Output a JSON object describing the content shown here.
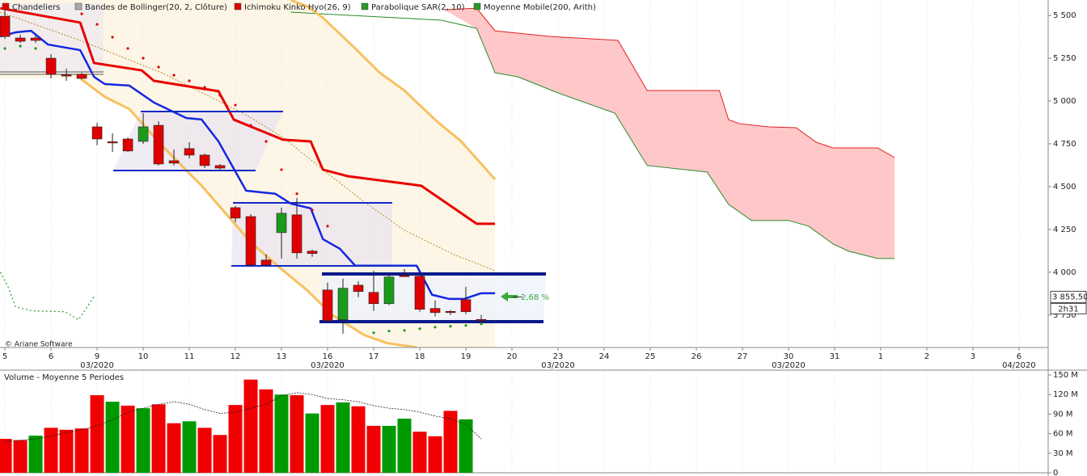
{
  "chart_data": [
    {
      "type": "candlestick",
      "legend": [
        {
          "label": "Chandeliers",
          "color": "#e00000"
        },
        {
          "label": "Bandes de Bollinger(20, 2, Clôture)",
          "color": "#aaaaaa"
        },
        {
          "label": "Ichimoku Kinko Hyo(26, 9)",
          "color": "#e00000"
        },
        {
          "label": "Parabolique SAR(2, 10)",
          "color": "#2a9a2a"
        },
        {
          "label": "Moyenne Mobile(200, Arith)",
          "color": "#2a9a2a"
        }
      ],
      "xlim": [
        -0.32,
        67.9
      ],
      "ylim": [
        3560,
        5590
      ],
      "xticks": [
        {
          "value": 0,
          "label": "5"
        },
        {
          "value": 3,
          "label": "6"
        },
        {
          "value": 6,
          "label": "9"
        },
        {
          "value": 9,
          "label": "10"
        },
        {
          "value": 12,
          "label": "11"
        },
        {
          "value": 15,
          "label": "12"
        },
        {
          "value": 18,
          "label": "13"
        },
        {
          "value": 21,
          "label": "16"
        },
        {
          "value": 24,
          "label": "17"
        },
        {
          "value": 27,
          "label": "18"
        },
        {
          "value": 30,
          "label": "19"
        },
        {
          "value": 33,
          "label": "20"
        },
        {
          "value": 36,
          "label": "23"
        },
        {
          "value": 39,
          "label": "24"
        },
        {
          "value": 42,
          "label": "25"
        },
        {
          "value": 45,
          "label": "26"
        },
        {
          "value": 48,
          "label": "27"
        },
        {
          "value": 51,
          "label": "30"
        },
        {
          "value": 54,
          "label": "31"
        },
        {
          "value": 57,
          "label": "1"
        },
        {
          "value": 60,
          "label": "2"
        },
        {
          "value": 63,
          "label": "3"
        },
        {
          "value": 66,
          "label": "6"
        }
      ],
      "month_labels": [
        {
          "value": 6,
          "label": "03/2020"
        },
        {
          "value": 21,
          "label": "03/2020"
        },
        {
          "value": 36,
          "label": "03/2020"
        },
        {
          "value": 51,
          "label": "03/2020"
        },
        {
          "value": 66,
          "label": "04/2020"
        }
      ],
      "yticks": [
        {
          "value": 5500,
          "label": "5 500"
        },
        {
          "value": 5250,
          "label": "5 250"
        },
        {
          "value": 5000,
          "label": "5 000"
        },
        {
          "value": 4750,
          "label": "4 750"
        },
        {
          "value": 4500,
          "label": "4 500"
        },
        {
          "value": 4250,
          "label": "4 250"
        },
        {
          "value": 4000,
          "label": "4 000"
        },
        {
          "value": 3750,
          "label": "3 750"
        }
      ],
      "up_color": "#1c9a1c",
      "down_color": "#e00000",
      "open": [
        5495,
        5368,
        5368,
        5250,
        5153,
        5156,
        4849,
        4762,
        4778,
        4764,
        4858,
        4651,
        4722,
        4684,
        4623,
        4377,
        4325,
        4071,
        4231,
        4335,
        4123,
        3896,
        3722,
        3924,
        3882,
        3816,
        3981,
        3976,
        3788,
        3771,
        3840,
        3724
      ],
      "high": [
        5533,
        5387,
        5382,
        5274,
        5189,
        5165,
        4873,
        4811,
        4788,
        4929,
        4882,
        4717,
        4759,
        4693,
        4632,
        4387,
        4340,
        4104,
        4377,
        4434,
        4132,
        3939,
        3962,
        3948,
        4009,
        3986,
        4019,
        3986,
        3835,
        3778,
        3915,
        3750
      ],
      "low": [
        5363,
        5340,
        5340,
        5132,
        5118,
        5127,
        4741,
        4703,
        4703,
        4750,
        4623,
        4623,
        4665,
        4608,
        4599,
        4292,
        4033,
        4033,
        4080,
        4080,
        4090,
        3703,
        3641,
        3854,
        3774,
        3807,
        3972,
        3769,
        3741,
        3750,
        3755,
        3712
      ],
      "close": [
        5377,
        5349,
        5354,
        5156,
        5151,
        5132,
        4778,
        4759,
        4708,
        4849,
        4632,
        4637,
        4684,
        4623,
        4608,
        4316,
        4042,
        4042,
        4344,
        4113,
        4109,
        3717,
        3906,
        3887,
        3816,
        3972,
        3976,
        3783,
        3764,
        3769,
        3769,
        3722
      ],
      "sar": [
        5307,
        5321,
        5307,
        null,
        null,
        5509,
        5448,
        5373,
        5307,
        5250,
        5198,
        5151,
        5118,
        5080,
        5033,
        4976,
        4858,
        4764,
        4599,
        4458,
        4363,
        4269,
        null,
        null,
        3646,
        3656,
        3660,
        3670,
        3679,
        3684,
        3689,
        3698
      ],
      "lines": [
        {
          "color": "#2a9a2a",
          "width": 1.2,
          "dash": "2,3",
          "x": [
            -0.3,
            0.2,
            0.7,
            1.8,
            3.9,
            4.8,
            5.8
          ],
          "values": [
            4000,
            3915,
            3797,
            3774,
            3769,
            3722,
            3858
          ]
        },
        {
          "color": "#f7c060",
          "width": 3,
          "x": [
            18.6,
            19.7,
            20.7,
            22.8,
            24.4,
            26,
            28.1,
            29.7,
            31.9
          ],
          "values": [
            5590,
            5552,
            5486,
            5307,
            5165,
            5061,
            4882,
            4764,
            4542
          ]
        },
        {
          "color": "#f7c060",
          "width": 3,
          "x": [
            4.9,
            6.5,
            8.1,
            10.2,
            12.8,
            14.4,
            16,
            17.8,
            19.7,
            21.3,
            23.4,
            24.9,
            26.8
          ],
          "values": [
            5132,
            5024,
            4953,
            4741,
            4505,
            4340,
            4175,
            4033,
            3892,
            3750,
            3632,
            3585,
            3561
          ]
        },
        {
          "color": "#b8862e",
          "width": 1,
          "dash": "2,2",
          "x": [
            -0.3,
            4.9,
            10.2,
            15.5,
            18.1,
            20.7,
            23.4,
            26,
            29.2,
            31.9
          ],
          "values": [
            5519,
            5354,
            5165,
            4929,
            4788,
            4599,
            4410,
            4245,
            4104,
            4009
          ]
        },
        {
          "color": "#e80000",
          "width": 3,
          "x": [
            -0.3,
            4.9,
            5.8,
            8.9,
            9.7,
            13.9,
            14.9,
            18.1,
            19.9,
            20.7,
            22.3,
            27.1,
            30.7,
            31.9
          ],
          "values": [
            5542,
            5458,
            5222,
            5179,
            5118,
            5057,
            4891,
            4774,
            4764,
            4599,
            4561,
            4505,
            4283,
            4283
          ]
        },
        {
          "color": "#1428e0",
          "width": 2.5,
          "x": [
            -0.3,
            0.7,
            1.7,
            2.8,
            4.9,
            5.8,
            6.5,
            8.1,
            9.7,
            11.8,
            12.8,
            13.9,
            15.7,
            17.6,
            18.6,
            19.9,
            20.7,
            21.8,
            22.8,
            26.8,
            27.8,
            28.9,
            29.9,
            31,
            31.9
          ],
          "values": [
            5377,
            5401,
            5410,
            5330,
            5297,
            5141,
            5099,
            5090,
            4991,
            4901,
            4892,
            4764,
            4476,
            4458,
            4401,
            4373,
            4193,
            4137,
            4038,
            4038,
            3868,
            3844,
            3844,
            3877,
            3877
          ]
        }
      ],
      "cloud": {
        "color": "#ffc8c8",
        "a": {
          "color": "#e02020",
          "x": [
            28.6,
            30.7,
            31.9,
            35.5,
            39.9,
            41.8,
            46.5,
            47.1,
            47.8,
            49.7,
            51.5,
            52.8,
            53.9,
            56.8,
            57.9
          ],
          "values": [
            5533,
            5542,
            5410,
            5377,
            5354,
            5061,
            5061,
            4891,
            4868,
            4849,
            4844,
            4759,
            4726,
            4726,
            4670
          ]
        },
        "b": {
          "color": "#2a8a2a",
          "x": [
            18.6,
            28.4,
            30.7,
            31.9,
            33.4,
            36,
            39.7,
            41.8,
            45.7,
            47.1,
            48.6,
            51,
            52.3,
            53.9,
            54.9,
            56.8,
            57.9
          ],
          "values": [
            5519,
            5472,
            5425,
            5165,
            5141,
            5047,
            4929,
            4623,
            4585,
            4396,
            4302,
            4302,
            4269,
            4165,
            4123,
            4080,
            4080
          ]
        }
      },
      "last_price": {
        "value": 3855.5,
        "label": "3 855,50"
      },
      "timer": "2h31",
      "annotation": "2,68 %",
      "copyright": "© Ariane Software"
    },
    {
      "type": "bar",
      "title": "Volume  - Moyenne 5 Periodes",
      "ylim": [
        0,
        155
      ],
      "yticks": [
        {
          "value": 150,
          "label": "150 M"
        },
        {
          "value": 120,
          "label": "120 M"
        },
        {
          "value": 90,
          "label": "90 M"
        },
        {
          "value": 60,
          "label": "60 M"
        },
        {
          "value": 30,
          "label": "30 M"
        },
        0
      ],
      "values": [
        52,
        50,
        57,
        69,
        66,
        68,
        119,
        109,
        103,
        99,
        105,
        76,
        79,
        69,
        58,
        104,
        143,
        128,
        120,
        119,
        91,
        104,
        108,
        102,
        72,
        72,
        83,
        63,
        56,
        95,
        82,
        null
      ],
      "colors": [
        "#f00000",
        "#f00000",
        "#009a00",
        "#f00000",
        "#f00000",
        "#f00000",
        "#f00000",
        "#009a00",
        "#f00000",
        "#009a00",
        "#f00000",
        "#f00000",
        "#009a00",
        "#f00000",
        "#f00000",
        "#f00000",
        "#f00000",
        "#f00000",
        "#009a00",
        "#f00000",
        "#009a00",
        "#f00000",
        "#009a00",
        "#f00000",
        "#f00000",
        "#009a00",
        "#009a00",
        "#f00000",
        "#f00000",
        "#f00000",
        "#009a00",
        null
      ],
      "ma": {
        "color": "#222222",
        "values": [
          48,
          50,
          52,
          56,
          62,
          66,
          72,
          81,
          93,
          99,
          105,
          109,
          105,
          97,
          91,
          93,
          99,
          105,
          118,
          123,
          120,
          114,
          112,
          109,
          103,
          99,
          97,
          93,
          87,
          83,
          74,
          52
        ]
      }
    }
  ]
}
